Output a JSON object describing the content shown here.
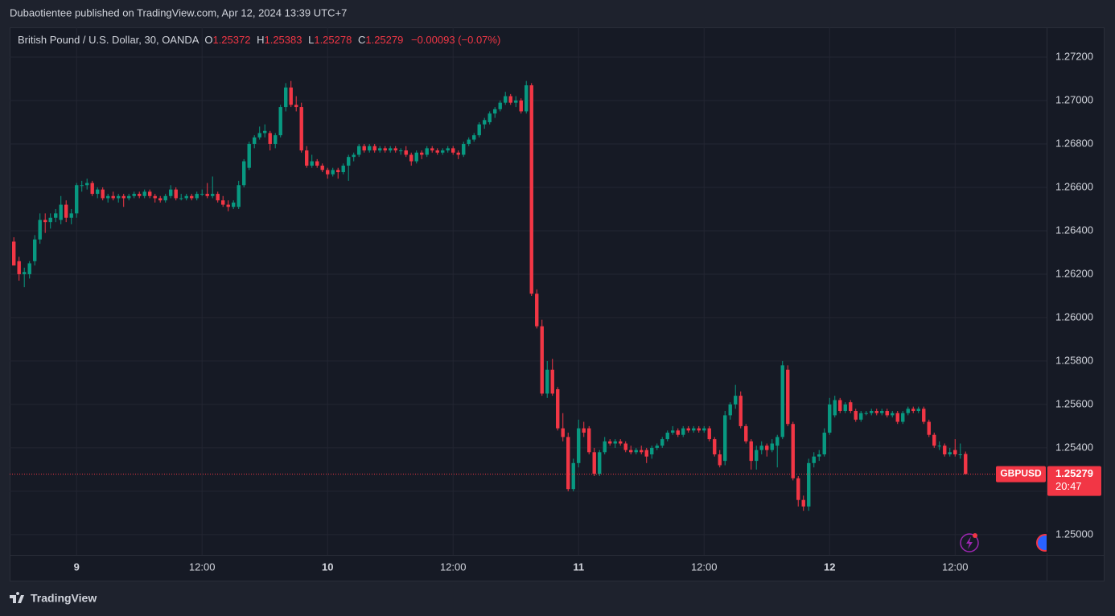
{
  "header": {
    "title": "Dubaotientee published on TradingView.com, Apr 12, 2024 13:39 UTC+7"
  },
  "legend": {
    "symbol": "British Pound / U.S. Dollar, 30, OANDA",
    "fields": [
      {
        "label": "O",
        "value": "1.25372"
      },
      {
        "label": "H",
        "value": "1.25383"
      },
      {
        "label": "L",
        "value": "1.25278"
      },
      {
        "label": "C",
        "value": "1.25279"
      }
    ],
    "change": "−0.00093 (−0.07%)"
  },
  "price_label": {
    "symbol": "GBPUSD",
    "price": "1.25279",
    "countdown": "20:47"
  },
  "footer": {
    "brand": "TradingView"
  },
  "chart_data": {
    "type": "candlestick",
    "up_color": "#089981",
    "down_color": "#f23645",
    "grid": true,
    "ylim": [
      1.24907,
      1.27337
    ],
    "yticks": [
      {
        "value": 1.272,
        "label": "1.27200"
      },
      {
        "value": 1.27,
        "label": "1.27000"
      },
      {
        "value": 1.268,
        "label": "1.26800"
      },
      {
        "value": 1.266,
        "label": "1.26600"
      },
      {
        "value": 1.264,
        "label": "1.26400"
      },
      {
        "value": 1.262,
        "label": "1.26200"
      },
      {
        "value": 1.26,
        "label": "1.26000"
      },
      {
        "value": 1.258,
        "label": "1.25800"
      },
      {
        "value": 1.256,
        "label": "1.25600"
      },
      {
        "value": 1.254,
        "label": "1.25400"
      },
      {
        "value": 1.252,
        "label": "1.25200"
      },
      {
        "value": 1.25,
        "label": "1.25000"
      }
    ],
    "xlim": [
      -0.8,
      197.5
    ],
    "xticks": [
      {
        "value": 12,
        "label": "9"
      },
      {
        "value": 36,
        "label": "12:00"
      },
      {
        "value": 60,
        "label": "10"
      },
      {
        "value": 84,
        "label": "12:00"
      },
      {
        "value": 108,
        "label": "11"
      },
      {
        "value": 132,
        "label": "12:00"
      },
      {
        "value": 156,
        "label": "12"
      },
      {
        "value": 180,
        "label": "12:00"
      }
    ],
    "candles": [
      [
        1.2635,
        1.2637,
        1.2624,
        1.2624
      ],
      [
        1.2626,
        1.2628,
        1.2617,
        1.262
      ],
      [
        1.262,
        1.2623,
        1.2614,
        1.2621
      ],
      [
        1.262,
        1.2626,
        1.2618,
        1.2625
      ],
      [
        1.2626,
        1.2638,
        1.2624,
        1.2636
      ],
      [
        1.2636,
        1.2648,
        1.2634,
        1.2645
      ],
      [
        1.2645,
        1.2648,
        1.2639,
        1.2644
      ],
      [
        1.2644,
        1.2648,
        1.2641,
        1.2646
      ],
      [
        1.2646,
        1.265,
        1.2644,
        1.2648
      ],
      [
        1.2645,
        1.2656,
        1.2643,
        1.2652
      ],
      [
        1.2652,
        1.2654,
        1.2644,
        1.2646
      ],
      [
        1.2646,
        1.265,
        1.2643,
        1.2648
      ],
      [
        1.2648,
        1.2662,
        1.2646,
        1.2661
      ],
      [
        1.2661,
        1.2663,
        1.2658,
        1.2661
      ],
      [
        1.2661,
        1.2664,
        1.2659,
        1.2662
      ],
      [
        1.2662,
        1.2663,
        1.2656,
        1.2657
      ],
      [
        1.2657,
        1.266,
        1.2655,
        1.2659
      ],
      [
        1.2659,
        1.266,
        1.2654,
        1.2655
      ],
      [
        1.2655,
        1.2657,
        1.2653,
        1.2656
      ],
      [
        1.2656,
        1.2658,
        1.2654,
        1.2655
      ],
      [
        1.2655,
        1.2657,
        1.2653,
        1.2656
      ],
      [
        1.2656,
        1.2657,
        1.2651,
        1.2655
      ],
      [
        1.2655,
        1.2657,
        1.2654,
        1.2656
      ],
      [
        1.2656,
        1.2658,
        1.2655,
        1.2657
      ],
      [
        1.2657,
        1.2658,
        1.2655,
        1.2656
      ],
      [
        1.2656,
        1.2659,
        1.2655,
        1.2658
      ],
      [
        1.2658,
        1.2659,
        1.2655,
        1.2656
      ],
      [
        1.2656,
        1.2657,
        1.2653,
        1.2655
      ],
      [
        1.2655,
        1.2656,
        1.2653,
        1.2654
      ],
      [
        1.2654,
        1.2657,
        1.2653,
        1.2656
      ],
      [
        1.2656,
        1.2661,
        1.2655,
        1.2659
      ],
      [
        1.2659,
        1.266,
        1.2654,
        1.2655
      ],
      [
        1.2655,
        1.2657,
        1.2654,
        1.2655
      ],
      [
        1.2655,
        1.2657,
        1.2654,
        1.2656
      ],
      [
        1.2656,
        1.2657,
        1.2654,
        1.2655
      ],
      [
        1.2655,
        1.2658,
        1.2654,
        1.2657
      ],
      [
        1.2657,
        1.2659,
        1.2656,
        1.2657
      ],
      [
        1.2657,
        1.2662,
        1.2655,
        1.2656
      ],
      [
        1.2656,
        1.2665,
        1.2655,
        1.2657
      ],
      [
        1.2657,
        1.2658,
        1.2653,
        1.2654
      ],
      [
        1.2654,
        1.2656,
        1.2651,
        1.2652
      ],
      [
        1.2652,
        1.2654,
        1.2649,
        1.2651
      ],
      [
        1.2651,
        1.2654,
        1.265,
        1.2653
      ],
      [
        1.2651,
        1.2663,
        1.265,
        1.2661
      ],
      [
        1.2661,
        1.2673,
        1.266,
        1.2672
      ],
      [
        1.2669,
        1.2681,
        1.2668,
        1.268
      ],
      [
        1.268,
        1.2684,
        1.2678,
        1.2683
      ],
      [
        1.2683,
        1.2688,
        1.2682,
        1.2685
      ],
      [
        1.2685,
        1.2689,
        1.2683,
        1.2686
      ],
      [
        1.2685,
        1.2686,
        1.2677,
        1.268
      ],
      [
        1.268,
        1.2685,
        1.2678,
        1.2684
      ],
      [
        1.2684,
        1.2698,
        1.2683,
        1.2697
      ],
      [
        1.2697,
        1.2708,
        1.2695,
        1.2706
      ],
      [
        1.2706,
        1.2709,
        1.2697,
        1.2698
      ],
      [
        1.2698,
        1.2702,
        1.2695,
        1.2697
      ],
      [
        1.2697,
        1.2699,
        1.2676,
        1.2677
      ],
      [
        1.2677,
        1.2679,
        1.2669,
        1.267
      ],
      [
        1.267,
        1.2675,
        1.2669,
        1.2672
      ],
      [
        1.2672,
        1.2673,
        1.2669,
        1.267
      ],
      [
        1.267,
        1.2671,
        1.2667,
        1.2668
      ],
      [
        1.2668,
        1.2669,
        1.2664,
        1.2666
      ],
      [
        1.2666,
        1.2669,
        1.2665,
        1.2668
      ],
      [
        1.2668,
        1.2669,
        1.2664,
        1.2667
      ],
      [
        1.2667,
        1.2671,
        1.2666,
        1.267
      ],
      [
        1.267,
        1.2675,
        1.2663,
        1.2674
      ],
      [
        1.2674,
        1.2676,
        1.2672,
        1.2675
      ],
      [
        1.2675,
        1.268,
        1.2674,
        1.2679
      ],
      [
        1.2679,
        1.268,
        1.2676,
        1.2677
      ],
      [
        1.2677,
        1.268,
        1.2676,
        1.2679
      ],
      [
        1.2679,
        1.268,
        1.2676,
        1.2677
      ],
      [
        1.2677,
        1.2679,
        1.2676,
        1.2678
      ],
      [
        1.2678,
        1.2679,
        1.2676,
        1.2677
      ],
      [
        1.2677,
        1.2679,
        1.2676,
        1.2678
      ],
      [
        1.2678,
        1.2679,
        1.2676,
        1.2677
      ],
      [
        1.2677,
        1.2678,
        1.2675,
        1.2677
      ],
      [
        1.2677,
        1.2679,
        1.2674,
        1.2675
      ],
      [
        1.2675,
        1.2676,
        1.267,
        1.2672
      ],
      [
        1.2672,
        1.2677,
        1.2671,
        1.2676
      ],
      [
        1.2676,
        1.2677,
        1.2673,
        1.2675
      ],
      [
        1.2675,
        1.2679,
        1.2674,
        1.2678
      ],
      [
        1.2678,
        1.2679,
        1.2676,
        1.2677
      ],
      [
        1.2677,
        1.2678,
        1.2675,
        1.2676
      ],
      [
        1.2676,
        1.2678,
        1.2675,
        1.2677
      ],
      [
        1.2677,
        1.2679,
        1.2676,
        1.2678
      ],
      [
        1.2678,
        1.2679,
        1.2675,
        1.2676
      ],
      [
        1.2676,
        1.2677,
        1.2673,
        1.2675
      ],
      [
        1.2675,
        1.2681,
        1.2674,
        1.268
      ],
      [
        1.268,
        1.2683,
        1.2679,
        1.2682
      ],
      [
        1.2682,
        1.2685,
        1.2681,
        1.2684
      ],
      [
        1.2684,
        1.269,
        1.2683,
        1.2689
      ],
      [
        1.2689,
        1.2692,
        1.2687,
        1.2691
      ],
      [
        1.269,
        1.2695,
        1.2689,
        1.2694
      ],
      [
        1.2694,
        1.2697,
        1.2692,
        1.2696
      ],
      [
        1.2696,
        1.27,
        1.2695,
        1.2699
      ],
      [
        1.2699,
        1.2704,
        1.2698,
        1.2702
      ],
      [
        1.2702,
        1.2703,
        1.2698,
        1.2699
      ],
      [
        1.2699,
        1.2702,
        1.2697,
        1.27
      ],
      [
        1.27,
        1.2701,
        1.2694,
        1.2695
      ],
      [
        1.2695,
        1.2709,
        1.2694,
        1.2707
      ],
      [
        1.2707,
        1.2708,
        1.261,
        1.2611
      ],
      [
        1.2611,
        1.2613,
        1.2595,
        1.2596
      ],
      [
        1.2596,
        1.2599,
        1.2564,
        1.2565
      ],
      [
        1.2565,
        1.258,
        1.2563,
        1.2576
      ],
      [
        1.2576,
        1.2581,
        1.2564,
        1.2565
      ],
      [
        1.2567,
        1.2568,
        1.2548,
        1.2549
      ],
      [
        1.2549,
        1.2556,
        1.2543,
        1.2545
      ],
      [
        1.2545,
        1.2547,
        1.252,
        1.2521
      ],
      [
        1.2521,
        1.2535,
        1.252,
        1.2533
      ],
      [
        1.2533,
        1.2553,
        1.2531,
        1.2549
      ],
      [
        1.2549,
        1.2552,
        1.2545,
        1.2547
      ],
      [
        1.2549,
        1.255,
        1.2537,
        1.2538
      ],
      [
        1.2538,
        1.254,
        1.2527,
        1.2528
      ],
      [
        1.2528,
        1.2539,
        1.2527,
        1.2538
      ],
      [
        1.2538,
        1.2545,
        1.2537,
        1.2543
      ],
      [
        1.2543,
        1.2544,
        1.2541,
        1.2542
      ],
      [
        1.2542,
        1.2544,
        1.254,
        1.2543
      ],
      [
        1.2543,
        1.2544,
        1.2541,
        1.2542
      ],
      [
        1.2542,
        1.2543,
        1.2538,
        1.2539
      ],
      [
        1.2539,
        1.2541,
        1.2537,
        1.2538
      ],
      [
        1.2538,
        1.254,
        1.2537,
        1.2539
      ],
      [
        1.2539,
        1.2541,
        1.2537,
        1.2538
      ],
      [
        1.2539,
        1.254,
        1.2533,
        1.2536
      ],
      [
        1.2537,
        1.2541,
        1.2535,
        1.254
      ],
      [
        1.254,
        1.2542,
        1.2539,
        1.2541
      ],
      [
        1.2541,
        1.2545,
        1.254,
        1.2544
      ],
      [
        1.2544,
        1.2548,
        1.2543,
        1.2547
      ],
      [
        1.2547,
        1.255,
        1.2546,
        1.2548
      ],
      [
        1.2548,
        1.2549,
        1.2545,
        1.2546
      ],
      [
        1.2546,
        1.255,
        1.2545,
        1.2549
      ],
      [
        1.2549,
        1.255,
        1.2547,
        1.2548
      ],
      [
        1.2548,
        1.255,
        1.2547,
        1.2549
      ],
      [
        1.2549,
        1.255,
        1.2547,
        1.2548
      ],
      [
        1.2548,
        1.255,
        1.2547,
        1.2549
      ],
      [
        1.2549,
        1.255,
        1.2543,
        1.2544
      ],
      [
        1.2544,
        1.2545,
        1.2536,
        1.2537
      ],
      [
        1.2537,
        1.2539,
        1.2531,
        1.2532
      ],
      [
        1.2534,
        1.2557,
        1.2532,
        1.2555
      ],
      [
        1.2555,
        1.2561,
        1.2553,
        1.256
      ],
      [
        1.256,
        1.2569,
        1.2558,
        1.2564
      ],
      [
        1.2564,
        1.2566,
        1.2549,
        1.255
      ],
      [
        1.255,
        1.2551,
        1.2542,
        1.2543
      ],
      [
        1.2543,
        1.2544,
        1.253,
        1.2534
      ],
      [
        1.2534,
        1.2541,
        1.253,
        1.2539
      ],
      [
        1.2539,
        1.2543,
        1.2537,
        1.2541
      ],
      [
        1.2541,
        1.2542,
        1.2536,
        1.2539
      ],
      [
        1.2539,
        1.2544,
        1.2538,
        1.2542
      ],
      [
        1.2541,
        1.2546,
        1.2531,
        1.2545
      ],
      [
        1.2545,
        1.258,
        1.2544,
        1.2578
      ],
      [
        1.2576,
        1.2578,
        1.255,
        1.2551
      ],
      [
        1.2551,
        1.2552,
        1.2525,
        1.2526
      ],
      [
        1.2526,
        1.2527,
        1.2513,
        1.2516
      ],
      [
        1.2516,
        1.2518,
        1.2511,
        1.2513
      ],
      [
        1.2513,
        1.2535,
        1.2511,
        1.2533
      ],
      [
        1.2533,
        1.2538,
        1.2531,
        1.2536
      ],
      [
        1.2536,
        1.2539,
        1.2534,
        1.2537
      ],
      [
        1.2537,
        1.2549,
        1.2536,
        1.2547
      ],
      [
        1.2547,
        1.2563,
        1.2546,
        1.256
      ],
      [
        1.2555,
        1.2564,
        1.2554,
        1.2562
      ],
      [
        1.2562,
        1.2563,
        1.2556,
        1.2557
      ],
      [
        1.2557,
        1.2561,
        1.2556,
        1.256
      ],
      [
        1.2561,
        1.2562,
        1.2556,
        1.2557
      ],
      [
        1.2557,
        1.2558,
        1.2552,
        1.2553
      ],
      [
        1.2553,
        1.2557,
        1.2552,
        1.2556
      ],
      [
        1.2556,
        1.2557,
        1.2555,
        1.2556
      ],
      [
        1.2556,
        1.2558,
        1.2555,
        1.2557
      ],
      [
        1.2557,
        1.2558,
        1.2555,
        1.2556
      ],
      [
        1.2556,
        1.2558,
        1.2555,
        1.2557
      ],
      [
        1.2557,
        1.2558,
        1.2554,
        1.2555
      ],
      [
        1.2555,
        1.2557,
        1.2554,
        1.2556
      ],
      [
        1.2556,
        1.2557,
        1.2551,
        1.2552
      ],
      [
        1.2552,
        1.2557,
        1.2551,
        1.2556
      ],
      [
        1.2556,
        1.2559,
        1.2555,
        1.2558
      ],
      [
        1.2558,
        1.2559,
        1.2556,
        1.2557
      ],
      [
        1.2557,
        1.2559,
        1.2556,
        1.2558
      ],
      [
        1.2558,
        1.2559,
        1.2551,
        1.2552
      ],
      [
        1.2552,
        1.2553,
        1.2545,
        1.2546
      ],
      [
        1.2546,
        1.2547,
        1.254,
        1.2541
      ],
      [
        1.2541,
        1.2543,
        1.2539,
        1.2541
      ],
      [
        1.2541,
        1.2542,
        1.2536,
        1.2537
      ],
      [
        1.2537,
        1.254,
        1.2536,
        1.2538
      ],
      [
        1.2539,
        1.2544,
        1.2536,
        1.2537
      ],
      [
        1.2537,
        1.2542,
        1.2535,
        1.2537
      ],
      [
        1.25372,
        1.25383,
        1.25278,
        1.25279
      ]
    ]
  }
}
